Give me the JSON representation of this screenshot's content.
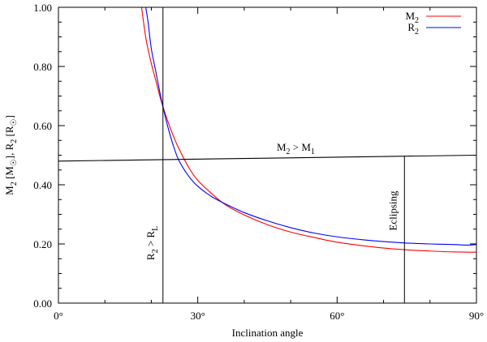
{
  "chart_data": {
    "type": "line",
    "xlabel": "Inclination angle",
    "ylabel": "M<sub>2</sub> [M<sub>☉</sub>], R<sub>2</sub> [R<sub>☉</sub>]",
    "xlim": [
      0,
      90
    ],
    "ylim": [
      0,
      1.0
    ],
    "xticks": [
      {
        "value": 0,
        "label": "0°"
      },
      {
        "value": 30,
        "label": "30°"
      },
      {
        "value": 60,
        "label": "60°"
      },
      {
        "value": 90,
        "label": "90°"
      }
    ],
    "yticks": [
      {
        "value": 0.0,
        "label": "0.00"
      },
      {
        "value": 0.2,
        "label": "0.20"
      },
      {
        "value": 0.4,
        "label": "0.40"
      },
      {
        "value": 0.6,
        "label": "0.60"
      },
      {
        "value": 0.8,
        "label": "0.80"
      },
      {
        "value": 1.0,
        "label": "1.00"
      }
    ],
    "legend": {
      "position": "top-right"
    },
    "series": [
      {
        "name": "M<sub>2</sub>",
        "color": "#ff0000",
        "x": [
          17.9,
          18.5,
          19,
          20,
          21,
          22,
          23,
          24,
          25,
          26,
          28,
          30,
          33,
          36,
          40,
          45,
          50,
          55,
          60,
          65,
          70,
          75,
          80,
          85,
          90
        ],
        "y": [
          1.0,
          0.93,
          0.88,
          0.81,
          0.75,
          0.69,
          0.64,
          0.595,
          0.555,
          0.52,
          0.46,
          0.415,
          0.37,
          0.332,
          0.298,
          0.265,
          0.24,
          0.222,
          0.206,
          0.195,
          0.186,
          0.18,
          0.176,
          0.173,
          0.172
        ]
      },
      {
        "name": "R<sub>2</sub>",
        "color": "#0000ff",
        "x": [
          18.8,
          19.3,
          20,
          21,
          22,
          23,
          24,
          25,
          26,
          28,
          30,
          33,
          36,
          40,
          45,
          50,
          55,
          60,
          65,
          70,
          75,
          80,
          85,
          88,
          90
        ],
        "y": [
          1.0,
          0.95,
          0.86,
          0.78,
          0.7,
          0.63,
          0.57,
          0.52,
          0.48,
          0.43,
          0.395,
          0.36,
          0.335,
          0.306,
          0.278,
          0.255,
          0.237,
          0.224,
          0.215,
          0.208,
          0.203,
          0.2,
          0.198,
          0.196,
          0.198
        ]
      },
      {
        "name": "M<sub>2</sub> > M<sub>1</sub>",
        "color": "#000000",
        "x": [
          0,
          90
        ],
        "y": [
          0.48,
          0.5
        ]
      }
    ],
    "vlines": [
      {
        "x": 22.5,
        "y_from": 0,
        "y_to": 1.0,
        "label": "R<sub>2</sub> > R<sub>L</sub>"
      },
      {
        "x": 74.5,
        "y_from": 0,
        "y_to": 0.497,
        "label": "Eclipsing"
      }
    ],
    "annotations": [
      {
        "text": "M<sub>2</sub> > M<sub>1</sub>",
        "x": 47,
        "y": 0.515
      }
    ]
  }
}
